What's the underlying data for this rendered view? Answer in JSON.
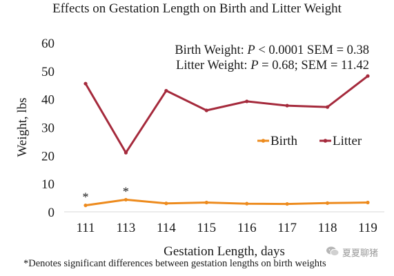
{
  "chart_data": {
    "type": "line",
    "title": "Effects on Gestation Length on Birth and Litter Weight",
    "xlabel": "Gestation Length, days",
    "ylabel": "Weight, lbs",
    "categories": [
      "111",
      "113",
      "114",
      "115",
      "116",
      "117",
      "118",
      "119"
    ],
    "ylim": [
      0,
      60
    ],
    "yticks": [
      "0",
      "10",
      "20",
      "30",
      "40",
      "50",
      "60"
    ],
    "grid": false,
    "legend_position": "right",
    "series": [
      {
        "name": "Birth",
        "color": "#ED8B1E",
        "values": [
          2.3,
          4.3,
          3.0,
          3.3,
          2.9,
          2.8,
          3.1,
          3.3
        ]
      },
      {
        "name": "Litter",
        "color": "#A52A3C",
        "values": [
          45.5,
          21.0,
          43.0,
          36.0,
          39.2,
          37.7,
          37.2,
          48.2
        ]
      }
    ],
    "annotations": {
      "stats_line_1_prefix": "Birth Weight: ",
      "stats_line_1_p": "P",
      "stats_line_1_suffix": " < 0.0001 SEM = 0.38",
      "stats_line_2_prefix": "Litter Weight: ",
      "stats_line_2_p": "P",
      "stats_line_2_suffix": " = 0.68; SEM = 11.42",
      "significance_marker": "*",
      "significance_categories": [
        "111",
        "113"
      ]
    },
    "footnote": "*Denotes significant differences between gestation lengths on birth weights"
  },
  "watermark": {
    "text": "夏夏聊猪",
    "icon": "wechat-icon"
  }
}
